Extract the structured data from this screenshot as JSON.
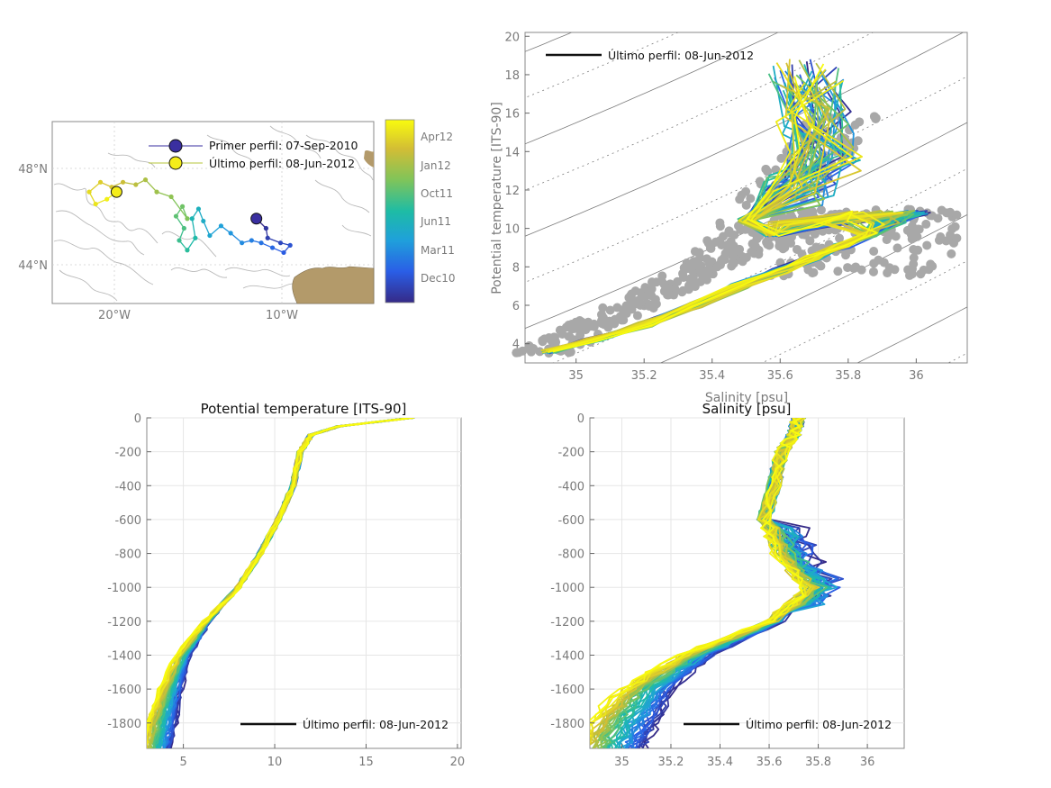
{
  "chart_data": [
    {
      "id": "map",
      "type": "scatter",
      "title": "",
      "x_ticks": [
        "20°W",
        "10°W"
      ],
      "y_ticks": [
        "48°N",
        "44°N"
      ],
      "xlim": [
        -24,
        -4
      ],
      "ylim": [
        42.5,
        50.0
      ],
      "legend": [
        {
          "label": "Primer perfil: 07-Sep-2010",
          "color": "#3a2fa0"
        },
        {
          "label": "Último perfil: 08-Jun-2012",
          "color": "#f5ed1a"
        }
      ],
      "trajectory": [
        {
          "lon": -11.3,
          "lat": 46.0,
          "t": 0.0
        },
        {
          "lon": -10.7,
          "lat": 45.6,
          "t": 0.04
        },
        {
          "lon": -10.6,
          "lat": 45.2,
          "t": 0.07
        },
        {
          "lon": -9.8,
          "lat": 45.0,
          "t": 0.1
        },
        {
          "lon": -9.2,
          "lat": 44.9,
          "t": 0.13
        },
        {
          "lon": -9.6,
          "lat": 44.6,
          "t": 0.16
        },
        {
          "lon": -10.3,
          "lat": 44.8,
          "t": 0.19
        },
        {
          "lon": -11.0,
          "lat": 45.0,
          "t": 0.22
        },
        {
          "lon": -11.6,
          "lat": 45.1,
          "t": 0.25
        },
        {
          "lon": -12.2,
          "lat": 45.0,
          "t": 0.28
        },
        {
          "lon": -12.9,
          "lat": 45.4,
          "t": 0.31
        },
        {
          "lon": -13.5,
          "lat": 45.7,
          "t": 0.34
        },
        {
          "lon": -14.2,
          "lat": 45.3,
          "t": 0.37
        },
        {
          "lon": -14.6,
          "lat": 45.9,
          "t": 0.4
        },
        {
          "lon": -14.9,
          "lat": 46.4,
          "t": 0.43
        },
        {
          "lon": -15.3,
          "lat": 46.0,
          "t": 0.46
        },
        {
          "lon": -15.1,
          "lat": 45.2,
          "t": 0.49
        },
        {
          "lon": -15.6,
          "lat": 44.7,
          "t": 0.52
        },
        {
          "lon": -16.1,
          "lat": 45.1,
          "t": 0.55
        },
        {
          "lon": -15.8,
          "lat": 45.6,
          "t": 0.58
        },
        {
          "lon": -16.3,
          "lat": 46.1,
          "t": 0.61
        },
        {
          "lon": -15.9,
          "lat": 46.5,
          "t": 0.64
        },
        {
          "lon": -15.6,
          "lat": 46.0,
          "t": 0.67
        },
        {
          "lon": -16.6,
          "lat": 46.9,
          "t": 0.7
        },
        {
          "lon": -17.5,
          "lat": 47.1,
          "t": 0.73
        },
        {
          "lon": -18.2,
          "lat": 47.6,
          "t": 0.76
        },
        {
          "lon": -18.8,
          "lat": 47.4,
          "t": 0.79
        },
        {
          "lon": -19.6,
          "lat": 47.5,
          "t": 0.82
        },
        {
          "lon": -20.3,
          "lat": 47.3,
          "t": 0.85
        },
        {
          "lon": -21.0,
          "lat": 47.5,
          "t": 0.88
        },
        {
          "lon": -21.7,
          "lat": 47.1,
          "t": 0.91
        },
        {
          "lon": -21.3,
          "lat": 46.6,
          "t": 0.94
        },
        {
          "lon": -20.6,
          "lat": 46.8,
          "t": 0.97
        },
        {
          "lon": -20.0,
          "lat": 47.1,
          "t": 1.0
        }
      ],
      "colorbar": {
        "ticks": [
          "Apr12",
          "Jan12",
          "Oct11",
          "Jun11",
          "Mar11",
          "Dec10"
        ],
        "colors": [
          "#352a87",
          "#2a5ee6",
          "#1fa0db",
          "#1ebca5",
          "#7fc45a",
          "#d2bd35",
          "#f9fb0e"
        ]
      }
    },
    {
      "id": "ts",
      "type": "scatter",
      "title": "",
      "xlabel": "Salinity [psu]",
      "ylabel": "Potential temperature [ITS-90]",
      "xlim": [
        34.85,
        36.15
      ],
      "ylim": [
        3.0,
        20.2
      ],
      "x_ticks": [
        35,
        35.2,
        35.4,
        35.6,
        35.8,
        36
      ],
      "y_ticks": [
        4,
        6,
        8,
        10,
        12,
        14,
        16,
        18,
        20
      ],
      "legend": [
        "Último perfil: 08-Jun-2012"
      ],
      "reference_points_color": "#a9a9a9",
      "sample_profile": {
        "S": [
          34.92,
          35.05,
          35.2,
          35.35,
          35.48,
          35.6,
          35.7,
          35.78,
          35.86,
          35.95,
          36.02,
          35.75,
          35.58,
          35.5,
          35.65,
          35.72,
          35.7,
          35.68
        ],
        "T": [
          3.6,
          4.2,
          5.0,
          6.0,
          7.0,
          7.8,
          8.5,
          9.1,
          9.7,
          10.3,
          10.8,
          10.2,
          9.7,
          10.4,
          12.0,
          13.5,
          15.5,
          18.0
        ]
      }
    },
    {
      "id": "temp-depth",
      "type": "line",
      "title": "Potential temperature [ITS-90]",
      "xlim": [
        3,
        20.2
      ],
      "ylim": [
        -1950,
        0
      ],
      "x_ticks": [
        5,
        10,
        15,
        20
      ],
      "y_ticks": [
        0,
        -200,
        -400,
        -600,
        -800,
        -1000,
        -1200,
        -1400,
        -1600,
        -1800
      ],
      "legend": [
        "Último perfil: 08-Jun-2012"
      ],
      "sample_profile": {
        "depth": [
          0,
          -50,
          -100,
          -200,
          -400,
          -600,
          -800,
          -1000,
          -1200,
          -1400,
          -1600,
          -1800,
          -1950
        ],
        "T": [
          17.5,
          13.5,
          12.0,
          11.4,
          11.0,
          10.2,
          9.2,
          8.0,
          6.3,
          5.0,
          4.3,
          3.8,
          3.5
        ]
      }
    },
    {
      "id": "sal-depth",
      "type": "line",
      "title": "Salinity [psu]",
      "xlim": [
        34.87,
        36.15
      ],
      "ylim": [
        -1950,
        0
      ],
      "x_ticks": [
        35,
        35.2,
        35.4,
        35.6,
        35.8,
        36
      ],
      "y_ticks": [
        0,
        -200,
        -400,
        -600,
        -800,
        -1000,
        -1200,
        -1400,
        -1600,
        -1800
      ],
      "legend": [
        "Último perfil: 08-Jun-2012"
      ],
      "sample_profile": {
        "depth": [
          0,
          -100,
          -200,
          -400,
          -600,
          -800,
          -1000,
          -1200,
          -1400,
          -1600,
          -1800,
          -1950
        ],
        "S": [
          35.72,
          35.7,
          35.65,
          35.62,
          35.58,
          35.63,
          35.75,
          35.62,
          35.3,
          35.1,
          35.0,
          34.95
        ]
      }
    }
  ]
}
